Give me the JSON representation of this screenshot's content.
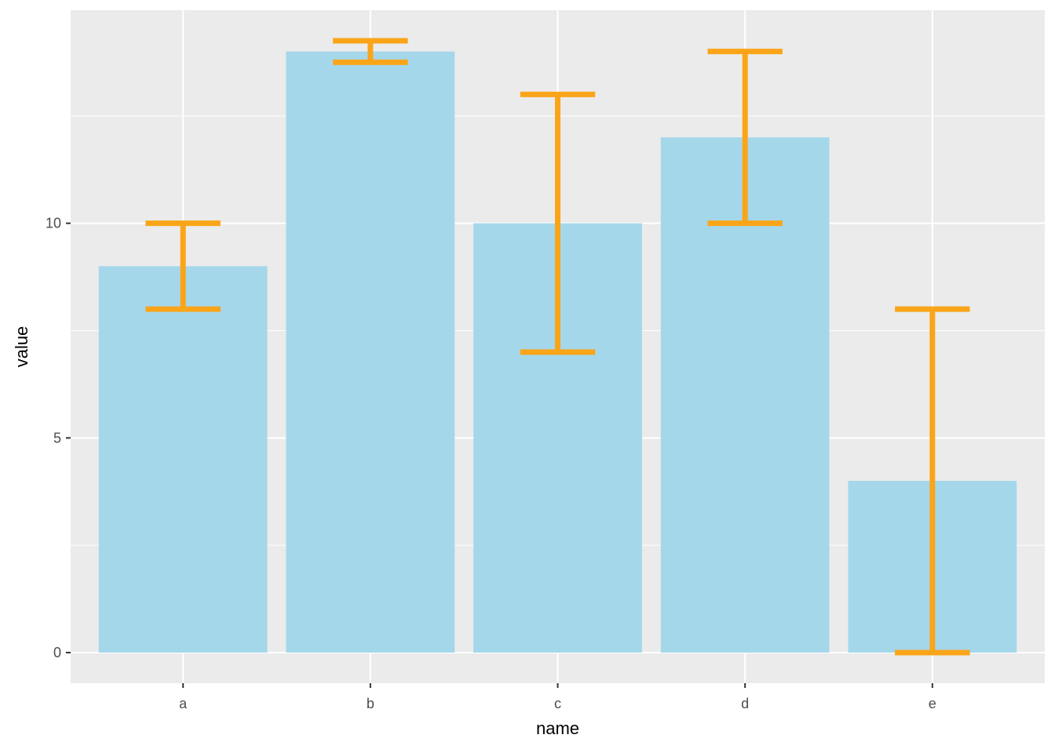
{
  "chart_data": {
    "type": "bar",
    "title": "",
    "xlabel": "name",
    "ylabel": "value",
    "categories": [
      "a",
      "b",
      "c",
      "d",
      "e"
    ],
    "values": [
      9,
      14,
      10,
      12,
      4
    ],
    "error_low": [
      8,
      13.75,
      7,
      10,
      0
    ],
    "error_high": [
      10,
      14.25,
      13,
      14,
      8
    ],
    "y_ticks": [
      0,
      5,
      10
    ],
    "y_minor_ticks": [
      2.5,
      7.5,
      12.5
    ],
    "ylim": [
      -0.7125,
      14.9625
    ],
    "grid": true,
    "legend": "none",
    "colors": {
      "bar_fill": "#A5D7EB",
      "error_bar": "#FAA519",
      "panel_background": "#EBEBEB",
      "grid_line": "#FFFFFF",
      "tick_text": "#4D4D4D",
      "axis_title_text": "#000000",
      "tick_mark": "#333333"
    }
  }
}
